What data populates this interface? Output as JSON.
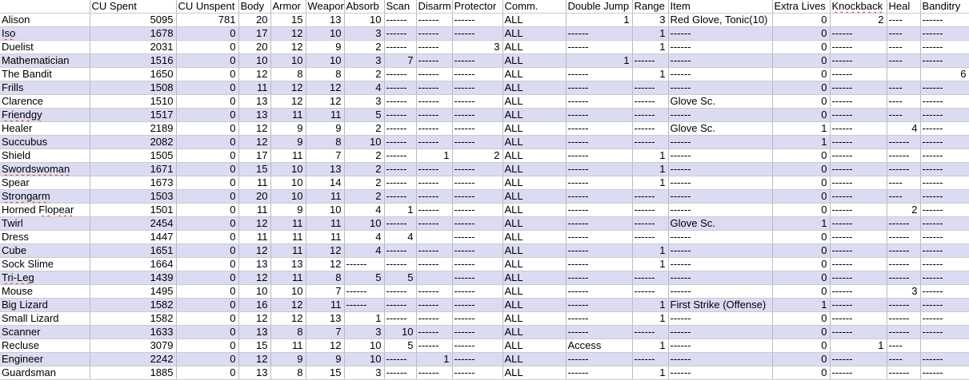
{
  "colors": {
    "alt_row": "#dbdbf2",
    "grid_vertical": "#b9b9c9",
    "grid_horizontal": "#cbcbcb",
    "spellcheck_underline": "#e03a2f"
  },
  "table": {
    "columns": [
      {
        "key": "name",
        "label": "",
        "width": 112
      },
      {
        "key": "cu_spent",
        "label": "CU Spent",
        "width": 108
      },
      {
        "key": "cu_unspent",
        "label": "CU Unspent",
        "width": 78
      },
      {
        "key": "body",
        "label": "Body",
        "width": 40
      },
      {
        "key": "armor",
        "label": "Armor",
        "width": 44
      },
      {
        "key": "weapon",
        "label": "Weapon",
        "width": 48
      },
      {
        "key": "absorb",
        "label": "Absorb",
        "width": 50
      },
      {
        "key": "scan",
        "label": "Scan",
        "width": 40
      },
      {
        "key": "disarm",
        "label": "Disarm",
        "width": 45
      },
      {
        "key": "protector",
        "label": "Protector",
        "width": 63
      },
      {
        "key": "comm",
        "label": "Comm.",
        "width": 79
      },
      {
        "key": "double_jump",
        "label": "Double Jump",
        "width": 83
      },
      {
        "key": "range",
        "label": "Range",
        "width": 45
      },
      {
        "key": "item",
        "label": "Item",
        "width": 130
      },
      {
        "key": "extra_lives",
        "label": "Extra Lives",
        "width": 72
      },
      {
        "key": "knockback",
        "label": "Knockback",
        "width": 71
      },
      {
        "key": "heal",
        "label": "Heal",
        "width": 42
      },
      {
        "key": "banditry",
        "label": "Banditry",
        "width": 61
      }
    ],
    "rows": [
      [
        "Alison",
        "5095",
        "781",
        "20",
        "15",
        "13",
        "10",
        "------",
        "------",
        "------",
        "ALL",
        "1",
        "3",
        "Red Glove, Tonic(10)",
        "0",
        "2",
        "----",
        "------"
      ],
      [
        "Iso",
        "1678",
        "0",
        "17",
        "12",
        "10",
        "3",
        "------",
        "------",
        "------",
        "ALL",
        "------",
        "1",
        "------",
        "0",
        "------",
        "----",
        "------"
      ],
      [
        "Duelist",
        "2031",
        "0",
        "20",
        "12",
        "9",
        "2",
        "------",
        "------",
        "3",
        "ALL",
        "------",
        "1",
        "------",
        "0",
        "------",
        "----",
        "------"
      ],
      [
        "Mathematician",
        "1516",
        "0",
        "10",
        "10",
        "10",
        "3",
        "7",
        "------",
        "------",
        "ALL",
        "1",
        "------",
        "------",
        "0",
        "------",
        "----",
        "------"
      ],
      [
        "The Bandit",
        "1650",
        "0",
        "12",
        "8",
        "8",
        "2",
        "------",
        "------",
        "------",
        "ALL",
        "------",
        "1",
        "------",
        "0",
        "------",
        "",
        "6"
      ],
      [
        "Frills",
        "1508",
        "0",
        "11",
        "12",
        "12",
        "4",
        "------",
        "------",
        "------",
        "ALL",
        "------",
        "------",
        "------",
        "0",
        "------",
        "----",
        "------"
      ],
      [
        "Clarence",
        "1510",
        "0",
        "13",
        "12",
        "12",
        "3",
        "------",
        "------",
        "------",
        "ALL",
        "------",
        "------",
        "Glove Sc.",
        "0",
        "------",
        "----",
        "------"
      ],
      [
        "Friendgy",
        "1517",
        "0",
        "13",
        "11",
        "11",
        "5",
        "------",
        "------",
        "------",
        "ALL",
        "------",
        "------",
        "------",
        "0",
        "------",
        "----",
        "------"
      ],
      [
        "Healer",
        "2189",
        "0",
        "12",
        "9",
        "9",
        "2",
        "------",
        "------",
        "------",
        "ALL",
        "------",
        "------",
        "Glove Sc.",
        "1",
        "------",
        "4",
        "------"
      ],
      [
        "Succubus",
        "2082",
        "0",
        "12",
        "9",
        "8",
        "10",
        "------",
        "------",
        "------",
        "ALL",
        "------",
        "------",
        "------",
        "1",
        "------",
        "------",
        "------"
      ],
      [
        "Shield",
        "1505",
        "0",
        "17",
        "11",
        "7",
        "2",
        "------",
        "1",
        "2",
        "ALL",
        "------",
        "1",
        "------",
        "0",
        "------",
        "------",
        "------"
      ],
      [
        "Swordswoman",
        "1671",
        "0",
        "15",
        "10",
        "13",
        "2",
        "------",
        "------",
        "------",
        "ALL",
        "------",
        "1",
        "------",
        "0",
        "------",
        "------",
        "------"
      ],
      [
        "Spear",
        "1673",
        "0",
        "11",
        "10",
        "14",
        "2",
        "------",
        "------",
        "------",
        "ALL",
        "------",
        "1",
        "------",
        "0",
        "------",
        "----",
        "------"
      ],
      [
        "Strongarm",
        "1503",
        "0",
        "20",
        "10",
        "11",
        "2",
        "------",
        "------",
        "------",
        "ALL",
        "------",
        "------",
        "------",
        "0",
        "------",
        "----",
        "------"
      ],
      [
        "Horned Flopear",
        "1501",
        "0",
        "11",
        "9",
        "10",
        "4",
        "1",
        "------",
        "------",
        "ALL",
        "------",
        "------",
        "------",
        "0",
        "------",
        "2",
        "------"
      ],
      [
        "Twirl",
        "2454",
        "0",
        "12",
        "11",
        "11",
        "10",
        "------",
        "------",
        "------",
        "ALL",
        "------",
        "------",
        "Glove Sc.",
        "1",
        "------",
        "------",
        "------"
      ],
      [
        "Dress",
        "1447",
        "0",
        "11",
        "11",
        "11",
        "4",
        "4",
        "",
        "------",
        "ALL",
        "------",
        "------",
        "------",
        "0",
        "------",
        "------",
        "------"
      ],
      [
        "Cube",
        "1651",
        "0",
        "12",
        "11",
        "12",
        "4",
        "------",
        "------",
        "------",
        "ALL",
        "------",
        "1",
        "------",
        "0",
        "------",
        "------",
        "------"
      ],
      [
        "Sock Slime",
        "1664",
        "0",
        "13",
        "13",
        "12",
        "------",
        "------",
        "------",
        "------",
        "ALL",
        "------",
        "1",
        "------",
        "0",
        "------",
        "------",
        "------"
      ],
      [
        "Tri-Leg",
        "1439",
        "0",
        "12",
        "11",
        "8",
        "5",
        "5",
        "",
        "------",
        "ALL",
        "------",
        "------",
        "------",
        "0",
        "------",
        "------",
        "------"
      ],
      [
        "Mouse",
        "1495",
        "0",
        "10",
        "10",
        "7",
        "------",
        "------",
        "------",
        "------",
        "ALL",
        "------",
        "------",
        "------",
        "0",
        "------",
        "3",
        "------"
      ],
      [
        "Big Lizard",
        "1582",
        "0",
        "16",
        "12",
        "11",
        "------",
        "------",
        "------",
        "------",
        "ALL",
        "------",
        "1",
        "First Strike (Offense)",
        "1",
        "------",
        "------",
        "------"
      ],
      [
        "Small Lizard",
        "1582",
        "0",
        "12",
        "12",
        "13",
        "1",
        "------",
        "------",
        "------",
        "ALL",
        "------",
        "1",
        "------",
        "0",
        "------",
        "------",
        "------"
      ],
      [
        "Scanner",
        "1633",
        "0",
        "13",
        "8",
        "7",
        "3",
        "10",
        "------",
        "------",
        "ALL",
        "------",
        "------",
        "------",
        "0",
        "------",
        "------",
        "------"
      ],
      [
        "Recluse",
        "3079",
        "0",
        "15",
        "11",
        "12",
        "10",
        "5",
        "------",
        "------",
        "ALL",
        "Access",
        "1",
        "------",
        "0",
        "1",
        "----",
        ""
      ],
      [
        "Engineer",
        "2242",
        "0",
        "12",
        "9",
        "9",
        "10",
        "------",
        "1",
        "------",
        "ALL",
        "------",
        "------",
        "------",
        "0",
        "------",
        "----",
        "------"
      ],
      [
        "Guardsman",
        "1885",
        "0",
        "13",
        "8",
        "15",
        "3",
        "------",
        "------",
        "------",
        "ALL",
        "------",
        "1",
        "------",
        "0",
        "------",
        "------",
        "------"
      ]
    ]
  },
  "spellcheck": {
    "full_underline_names": [
      "Iso",
      "Friendgy",
      "Swordswoman",
      "Strongarm",
      "Tri-Leg"
    ],
    "partial_underline": {
      "Horned Flopear": "Flopear"
    },
    "underlined_headers": [
      "Knockback"
    ]
  }
}
